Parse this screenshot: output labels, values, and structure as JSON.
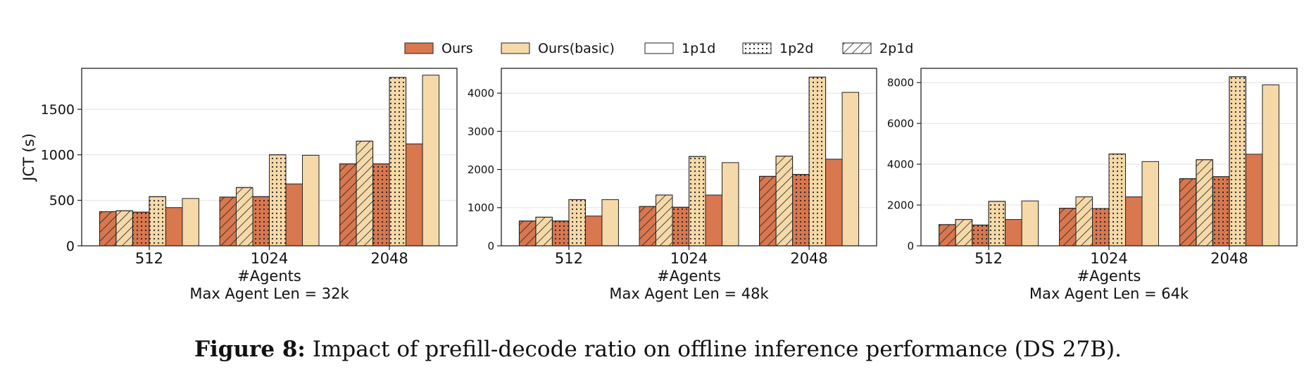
{
  "legend": {
    "items": [
      {
        "label": "Ours",
        "fill": "#d9774f",
        "hatch": "none"
      },
      {
        "label": "Ours(basic)",
        "fill": "#f5d9a8",
        "hatch": "none"
      },
      {
        "label": "1p1d",
        "fill": "#ffffff",
        "hatch": "none"
      },
      {
        "label": "1p2d",
        "fill": "#ffffff",
        "hatch": "dots"
      },
      {
        "label": "2p1d",
        "fill": "#ffffff",
        "hatch": "diag"
      }
    ]
  },
  "caption": {
    "label": "Figure 8:",
    "text": "Impact of prefill-decode ratio on offline inference performance (DS 27B)."
  },
  "colors": {
    "ours": "#d9774f",
    "ours_basic": "#f5d9a8",
    "edge": "#222222",
    "grid": "#e3e3e3"
  },
  "chart_data": [
    {
      "type": "bar",
      "title": "Max Agent Len = 32k",
      "xlabel": "#Agents",
      "ylabel": "JCT (s)",
      "categories": [
        "512",
        "1024",
        "2048"
      ],
      "ylim": [
        0,
        1950
      ],
      "yticks": [
        0,
        500,
        1000,
        1500
      ],
      "series": [
        {
          "name": "Ours 2p1d",
          "color": "ours",
          "hatch": "diag",
          "values": [
            375,
            535,
            900
          ]
        },
        {
          "name": "Ours(basic) 2p1d",
          "color": "ours_basic",
          "hatch": "diag",
          "values": [
            385,
            640,
            1150
          ]
        },
        {
          "name": "Ours 1p2d",
          "color": "ours",
          "hatch": "dots",
          "values": [
            370,
            540,
            900
          ]
        },
        {
          "name": "Ours(basic) 1p2d",
          "color": "ours_basic",
          "hatch": "dots",
          "values": [
            540,
            1000,
            1850
          ]
        },
        {
          "name": "Ours 1p1d",
          "color": "ours",
          "hatch": "none",
          "values": [
            420,
            680,
            1120
          ]
        },
        {
          "name": "Ours(basic) 1p1d",
          "color": "ours_basic",
          "hatch": "none",
          "values": [
            520,
            995,
            1875
          ]
        }
      ]
    },
    {
      "type": "bar",
      "title": "Max Agent Len = 48k",
      "xlabel": "#Agents",
      "ylabel": "",
      "categories": [
        "512",
        "1024",
        "2048"
      ],
      "ylim": [
        0,
        4650
      ],
      "yticks": [
        0,
        1000,
        2000,
        3000,
        4000
      ],
      "series": [
        {
          "name": "Ours 2p1d",
          "color": "ours",
          "hatch": "diag",
          "values": [
            650,
            1030,
            1820
          ]
        },
        {
          "name": "Ours(basic) 2p1d",
          "color": "ours_basic",
          "hatch": "diag",
          "values": [
            750,
            1330,
            2350
          ]
        },
        {
          "name": "Ours 1p2d",
          "color": "ours",
          "hatch": "dots",
          "values": [
            650,
            1010,
            1870
          ]
        },
        {
          "name": "Ours(basic) 1p2d",
          "color": "ours_basic",
          "hatch": "dots",
          "values": [
            1210,
            2340,
            4420
          ]
        },
        {
          "name": "Ours 1p1d",
          "color": "ours",
          "hatch": "none",
          "values": [
            780,
            1330,
            2270
          ]
        },
        {
          "name": "Ours(basic) 1p1d",
          "color": "ours_basic",
          "hatch": "none",
          "values": [
            1210,
            2180,
            4020
          ]
        }
      ]
    },
    {
      "type": "bar",
      "title": "Max Agent Len = 64k",
      "xlabel": "#Agents",
      "ylabel": "",
      "categories": [
        "512",
        "1024",
        "2048"
      ],
      "ylim": [
        0,
        8700
      ],
      "yticks": [
        0,
        2000,
        4000,
        6000,
        8000
      ],
      "series": [
        {
          "name": "Ours 2p1d",
          "color": "ours",
          "hatch": "diag",
          "values": [
            1040,
            1840,
            3290
          ]
        },
        {
          "name": "Ours(basic) 2p1d",
          "color": "ours_basic",
          "hatch": "diag",
          "values": [
            1290,
            2400,
            4220
          ]
        },
        {
          "name": "Ours 1p2d",
          "color": "ours",
          "hatch": "dots",
          "values": [
            1020,
            1830,
            3390
          ]
        },
        {
          "name": "Ours(basic) 1p2d",
          "color": "ours_basic",
          "hatch": "dots",
          "values": [
            2180,
            4500,
            8290
          ]
        },
        {
          "name": "Ours 1p1d",
          "color": "ours",
          "hatch": "none",
          "values": [
            1290,
            2400,
            4490
          ]
        },
        {
          "name": "Ours(basic) 1p1d",
          "color": "ours_basic",
          "hatch": "none",
          "values": [
            2200,
            4130,
            7890
          ]
        }
      ]
    }
  ]
}
